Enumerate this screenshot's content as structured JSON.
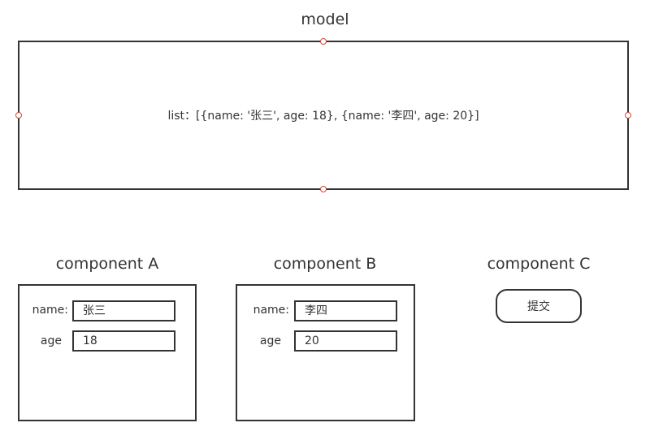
{
  "model": {
    "title": "model",
    "content": "list：[{name: '张三', age: 18}, {name: '李四', age: 20}]"
  },
  "component_a": {
    "title": "component A",
    "name_label": "name:",
    "name_value": "张三",
    "age_label": "age",
    "age_value": "18"
  },
  "component_b": {
    "title": "component B",
    "name_label": "name:",
    "name_value": "李四",
    "age_label": "age",
    "age_value": "20"
  },
  "component_c": {
    "title": "component C",
    "submit_label": "提交"
  },
  "colors": {
    "stroke": "#333333",
    "handle": "#d0483a"
  }
}
